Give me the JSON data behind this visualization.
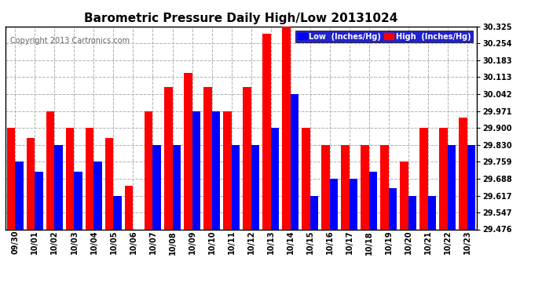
{
  "title": "Barometric Pressure Daily High/Low 20131024",
  "copyright": "Copyright 2013 Cartronics.com",
  "legend_low": "Low  (Inches/Hg)",
  "legend_high": "High  (Inches/Hg)",
  "low_color": "#0000ff",
  "high_color": "#ff0000",
  "background_color": "#ffffff",
  "grid_color": "#b0b0b0",
  "ylim_min": 29.476,
  "ylim_max": 30.325,
  "yticks": [
    29.476,
    29.547,
    29.617,
    29.688,
    29.759,
    29.83,
    29.9,
    29.971,
    30.042,
    30.113,
    30.183,
    30.254,
    30.325
  ],
  "categories": [
    "09/30",
    "10/01",
    "10/02",
    "10/03",
    "10/04",
    "10/05",
    "10/06",
    "10/07",
    "10/08",
    "10/09",
    "10/10",
    "10/11",
    "10/12",
    "10/13",
    "10/14",
    "10/15",
    "10/16",
    "10/17",
    "10/18",
    "10/19",
    "10/20",
    "10/21",
    "10/22",
    "10/23"
  ],
  "high_values": [
    29.9,
    29.859,
    29.971,
    29.9,
    29.9,
    29.859,
    29.659,
    29.971,
    30.071,
    30.13,
    30.071,
    29.971,
    30.071,
    30.296,
    30.325,
    29.9,
    29.83,
    29.83,
    29.83,
    29.83,
    29.759,
    29.9,
    29.9,
    29.942
  ],
  "low_values": [
    29.759,
    29.717,
    29.83,
    29.717,
    29.759,
    29.617,
    29.476,
    29.83,
    29.83,
    29.971,
    29.971,
    29.83,
    29.83,
    29.9,
    30.042,
    29.617,
    29.688,
    29.688,
    29.717,
    29.647,
    29.617,
    29.617,
    29.83,
    29.83
  ],
  "bar_width": 0.42,
  "title_fontsize": 11,
  "tick_fontsize": 7,
  "copyright_fontsize": 7,
  "legend_fontsize": 7
}
